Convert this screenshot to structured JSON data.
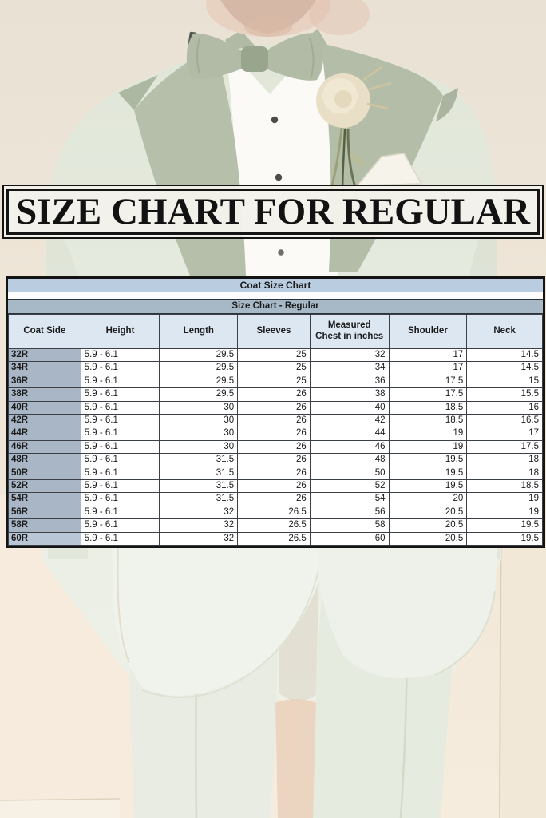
{
  "banner": {
    "title": "SIZE CHART FOR REGULAR"
  },
  "table": {
    "title": "Coat Size Chart",
    "subtitle": "Size Chart - Regular",
    "columns": [
      "Coat Side",
      "Height",
      "Length",
      "Sleeves",
      "Measured Chest in inches",
      "Shoulder",
      "Neck"
    ],
    "rows": [
      [
        "32R",
        "5.9 - 6.1",
        "29.5",
        "25",
        "32",
        "17",
        "14.5"
      ],
      [
        "34R",
        "5.9 - 6.1",
        "29.5",
        "25",
        "34",
        "17",
        "14.5"
      ],
      [
        "36R",
        "5.9 - 6.1",
        "29.5",
        "25",
        "36",
        "17.5",
        "15"
      ],
      [
        "38R",
        "5.9 - 6.1",
        "29.5",
        "26",
        "38",
        "17.5",
        "15.5"
      ],
      [
        "40R",
        "5.9 - 6.1",
        "30",
        "26",
        "40",
        "18.5",
        "16"
      ],
      [
        "42R",
        "5.9 - 6.1",
        "30",
        "26",
        "42",
        "18.5",
        "16.5"
      ],
      [
        "44R",
        "5.9 - 6.1",
        "30",
        "26",
        "44",
        "19",
        "17"
      ],
      [
        "46R",
        "5.9 - 6.1",
        "30",
        "26",
        "46",
        "19",
        "17.5"
      ],
      [
        "48R",
        "5.9 - 6.1",
        "31.5",
        "26",
        "48",
        "19.5",
        "18"
      ],
      [
        "50R",
        "5.9 - 6.1",
        "31.5",
        "26",
        "50",
        "19.5",
        "18"
      ],
      [
        "52R",
        "5.9 - 6.1",
        "31.5",
        "26",
        "52",
        "19.5",
        "18.5"
      ],
      [
        "54R",
        "5.9 - 6.1",
        "31.5",
        "26",
        "54",
        "20",
        "19"
      ],
      [
        "56R",
        "5.9 - 6.1",
        "32",
        "26.5",
        "56",
        "20.5",
        "19"
      ],
      [
        "58R",
        "5.9 - 6.1",
        "32",
        "26.5",
        "58",
        "20.5",
        "19.5"
      ],
      [
        "60R",
        "5.9 - 6.1",
        "32",
        "26.5",
        "60",
        "20.5",
        "19.5"
      ]
    ]
  },
  "colors": {
    "banner_bg": "#f3f1eb",
    "banner_border": "#141414",
    "table_title_bg": "#b9cce0",
    "table_subtitle_bg": "#a7b8c7",
    "table_header_bg": "#dde7f2",
    "row_label_bg": "#a8b6c6",
    "table_border": "#141414",
    "background_beige": "#eae3d5",
    "suit_mint": "#e3e8db",
    "lapel_sage": "#b5bfaa",
    "shirt_white": "#fbfaf6"
  }
}
